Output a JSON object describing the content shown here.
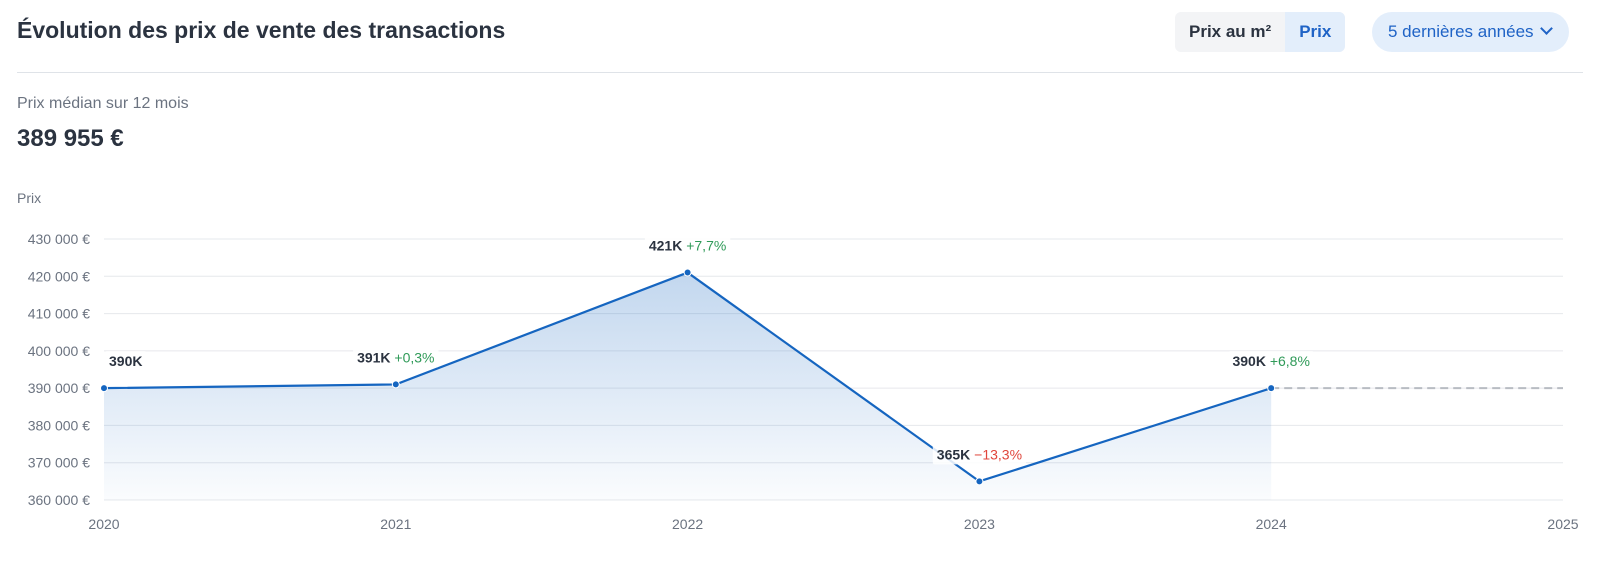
{
  "header": {
    "title": "Évolution des prix de vente des transactions",
    "toggle": [
      {
        "label": "Prix au m²",
        "active": false
      },
      {
        "label": "Prix",
        "active": true
      }
    ],
    "period": "5 dernières années"
  },
  "summary": {
    "label": "Prix médian sur 12 mois",
    "value": "389 955 €"
  },
  "chart_data": {
    "type": "line",
    "ylabel": "Prix",
    "x": [
      2020,
      2021,
      2022,
      2023,
      2024
    ],
    "x_ticks": [
      "2020",
      "2021",
      "2022",
      "2023",
      "2024",
      "2025"
    ],
    "xlim": [
      2020,
      2025
    ],
    "values": [
      390000,
      391000,
      421000,
      365000,
      390000
    ],
    "ylim": [
      360000,
      430000
    ],
    "y_ticks": [
      {
        "value": 430000,
        "label": "430 000 €"
      },
      {
        "value": 420000,
        "label": "420 000 €"
      },
      {
        "value": 410000,
        "label": "410 000 €"
      },
      {
        "value": 400000,
        "label": "400 000 €"
      },
      {
        "value": 390000,
        "label": "390 000 €"
      },
      {
        "value": 380000,
        "label": "380 000 €"
      },
      {
        "value": 370000,
        "label": "370 000 €"
      },
      {
        "value": 360000,
        "label": "360 000 €"
      }
    ],
    "point_labels": [
      {
        "value": "390K",
        "change": ""
      },
      {
        "value": "391K",
        "change": "+0,3%"
      },
      {
        "value": "421K",
        "change": "+7,7%"
      },
      {
        "value": "365K",
        "change": "−13,3%"
      },
      {
        "value": "390K",
        "change": "+6,8%"
      }
    ],
    "reference_line": {
      "value": 390000,
      "from": 2024,
      "to": 2025,
      "style": "dashed"
    },
    "grid": true,
    "colors": {
      "line": "#1565c0",
      "positive": "#2f9a58",
      "negative": "#e0463c",
      "reference": "#b8bcc2"
    }
  }
}
